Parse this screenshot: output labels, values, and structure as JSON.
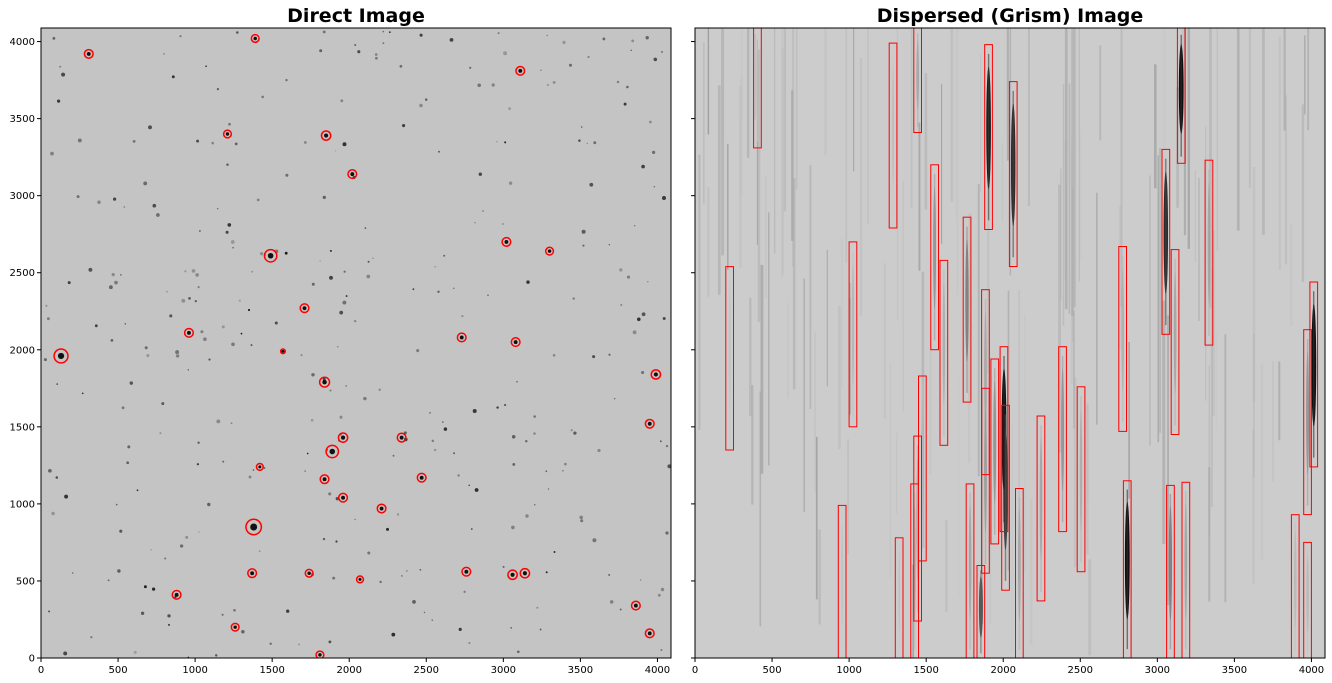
{
  "chart_data": [
    {
      "type": "scatter",
      "title": "Direct Image",
      "xlabel": "",
      "ylabel": "",
      "xlim": [
        0,
        4088
      ],
      "ylim": [
        0,
        4088
      ],
      "xticks": [
        "0",
        "500",
        "1000",
        "1500",
        "2000",
        "2500",
        "3000",
        "3500",
        "4000"
      ],
      "yticks": [
        "0",
        "500",
        "1000",
        "1500",
        "2000",
        "2500",
        "3000",
        "3500",
        "4000"
      ],
      "marker_color": "#ff0000",
      "background": "#c4c4c4",
      "colormap": "gray_r",
      "markers": [
        {
          "x": 130,
          "y": 1960,
          "r": 45
        },
        {
          "x": 310,
          "y": 3920,
          "r": 28
        },
        {
          "x": 1390,
          "y": 4020,
          "r": 25
        },
        {
          "x": 3110,
          "y": 3810,
          "r": 28
        },
        {
          "x": 1210,
          "y": 3400,
          "r": 25
        },
        {
          "x": 1850,
          "y": 3390,
          "r": 30
        },
        {
          "x": 2020,
          "y": 3140,
          "r": 28
        },
        {
          "x": 1490,
          "y": 2610,
          "r": 40
        },
        {
          "x": 3020,
          "y": 2700,
          "r": 28
        },
        {
          "x": 3300,
          "y": 2640,
          "r": 25
        },
        {
          "x": 1710,
          "y": 2270,
          "r": 28
        },
        {
          "x": 960,
          "y": 2110,
          "r": 28
        },
        {
          "x": 1570,
          "y": 1990,
          "r": 15
        },
        {
          "x": 2730,
          "y": 2080,
          "r": 28
        },
        {
          "x": 3080,
          "y": 2050,
          "r": 28
        },
        {
          "x": 1840,
          "y": 1790,
          "r": 32
        },
        {
          "x": 3990,
          "y": 1840,
          "r": 30
        },
        {
          "x": 3950,
          "y": 1520,
          "r": 28
        },
        {
          "x": 1960,
          "y": 1430,
          "r": 30
        },
        {
          "x": 2340,
          "y": 1430,
          "r": 28
        },
        {
          "x": 1890,
          "y": 1340,
          "r": 40
        },
        {
          "x": 1420,
          "y": 1240,
          "r": 22
        },
        {
          "x": 2470,
          "y": 1170,
          "r": 28
        },
        {
          "x": 1840,
          "y": 1160,
          "r": 28
        },
        {
          "x": 1960,
          "y": 1040,
          "r": 28
        },
        {
          "x": 2210,
          "y": 970,
          "r": 28
        },
        {
          "x": 1380,
          "y": 850,
          "r": 50
        },
        {
          "x": 1370,
          "y": 550,
          "r": 28
        },
        {
          "x": 1740,
          "y": 550,
          "r": 25
        },
        {
          "x": 2070,
          "y": 510,
          "r": 22
        },
        {
          "x": 2760,
          "y": 560,
          "r": 28
        },
        {
          "x": 3060,
          "y": 540,
          "r": 30
        },
        {
          "x": 3140,
          "y": 550,
          "r": 30
        },
        {
          "x": 880,
          "y": 410,
          "r": 28
        },
        {
          "x": 3860,
          "y": 340,
          "r": 28
        },
        {
          "x": 1260,
          "y": 200,
          "r": 25
        },
        {
          "x": 3950,
          "y": 160,
          "r": 28
        },
        {
          "x": 1810,
          "y": 20,
          "r": 25
        }
      ]
    },
    {
      "type": "scatter",
      "title": "Dispersed (Grism) Image",
      "xlabel": "",
      "ylabel": "",
      "xlim": [
        0,
        4088
      ],
      "ylim": [
        0,
        4088
      ],
      "xticks": [
        "0",
        "500",
        "1000",
        "1500",
        "2000",
        "2500",
        "3000",
        "3500",
        "4000"
      ],
      "yticks": [],
      "box_color": "#ff0000",
      "background": "#cccccc",
      "colormap": "gray_r",
      "boxes": [
        {
          "x0": 200,
          "x1": 250,
          "y0": 1350,
          "y1": 2540,
          "trace": 0.1
        },
        {
          "x0": 380,
          "x1": 430,
          "y0": 3310,
          "y1": 4088,
          "trace": 0.15
        },
        {
          "x0": 930,
          "x1": 980,
          "y0": 0,
          "y1": 990,
          "trace": 0.1
        },
        {
          "x0": 1000,
          "x1": 1050,
          "y0": 1500,
          "y1": 2700,
          "trace": 0.2
        },
        {
          "x0": 1260,
          "x1": 1310,
          "y0": 2790,
          "y1": 3990,
          "trace": 0.15
        },
        {
          "x0": 1300,
          "x1": 1350,
          "y0": 0,
          "y1": 780,
          "trace": 0.1
        },
        {
          "x0": 1400,
          "x1": 1450,
          "y0": 0,
          "y1": 1130,
          "trace": 0.25
        },
        {
          "x0": 1420,
          "x1": 1470,
          "y0": 240,
          "y1": 1440,
          "trace": 0.3
        },
        {
          "x0": 1420,
          "x1": 1470,
          "y0": 3410,
          "y1": 4088,
          "trace": 0.3
        },
        {
          "x0": 1450,
          "x1": 1500,
          "y0": 630,
          "y1": 1830,
          "trace": 0.2
        },
        {
          "x0": 1530,
          "x1": 1580,
          "y0": 2000,
          "y1": 3200,
          "trace": 0.4
        },
        {
          "x0": 1590,
          "x1": 1640,
          "y0": 1380,
          "y1": 2580,
          "trace": 0.25
        },
        {
          "x0": 1740,
          "x1": 1790,
          "y0": 1660,
          "y1": 2860,
          "trace": 0.5
        },
        {
          "x0": 1760,
          "x1": 1810,
          "y0": 0,
          "y1": 1130,
          "trace": 0.3
        },
        {
          "x0": 1830,
          "x1": 1880,
          "y0": 0,
          "y1": 600,
          "trace": 0.7
        },
        {
          "x0": 1860,
          "x1": 1910,
          "y0": 1190,
          "y1": 2390,
          "trace": 0.3
        },
        {
          "x0": 1860,
          "x1": 1910,
          "y0": 550,
          "y1": 1750,
          "trace": 0.35
        },
        {
          "x0": 1880,
          "x1": 1930,
          "y0": 2780,
          "y1": 3980,
          "trace": 0.9
        },
        {
          "x0": 1920,
          "x1": 1970,
          "y0": 740,
          "y1": 1940,
          "trace": 0.4
        },
        {
          "x0": 1980,
          "x1": 2030,
          "y0": 820,
          "y1": 2020,
          "trace": 0.95
        },
        {
          "x0": 1990,
          "x1": 2040,
          "y0": 440,
          "y1": 1640,
          "trace": 0.8
        },
        {
          "x0": 2040,
          "x1": 2090,
          "y0": 2540,
          "y1": 3740,
          "trace": 0.85
        },
        {
          "x0": 2080,
          "x1": 2130,
          "y0": 0,
          "y1": 1100,
          "trace": 0.3
        },
        {
          "x0": 2220,
          "x1": 2270,
          "y0": 370,
          "y1": 1570,
          "trace": 0.3
        },
        {
          "x0": 2360,
          "x1": 2410,
          "y0": 820,
          "y1": 2020,
          "trace": 0.4
        },
        {
          "x0": 2480,
          "x1": 2530,
          "y0": 560,
          "y1": 1760,
          "trace": 0.25
        },
        {
          "x0": 2750,
          "x1": 2800,
          "y0": 1470,
          "y1": 2670,
          "trace": 0.25
        },
        {
          "x0": 2780,
          "x1": 2830,
          "y0": 0,
          "y1": 1150,
          "trace": 0.95
        },
        {
          "x0": 3030,
          "x1": 3080,
          "y0": 2100,
          "y1": 3300,
          "trace": 0.85
        },
        {
          "x0": 3060,
          "x1": 3110,
          "y0": 0,
          "y1": 1120,
          "trace": 0.5
        },
        {
          "x0": 3090,
          "x1": 3140,
          "y0": 1450,
          "y1": 2650,
          "trace": 0.3
        },
        {
          "x0": 3130,
          "x1": 3180,
          "y0": 3210,
          "y1": 4088,
          "trace": 0.95
        },
        {
          "x0": 3160,
          "x1": 3210,
          "y0": 0,
          "y1": 1140,
          "trace": 0.3
        },
        {
          "x0": 3310,
          "x1": 3360,
          "y0": 2030,
          "y1": 3230,
          "trace": 0.3
        },
        {
          "x0": 3870,
          "x1": 3920,
          "y0": 0,
          "y1": 930,
          "trace": 0.2
        },
        {
          "x0": 3950,
          "x1": 4000,
          "y0": 930,
          "y1": 2130,
          "trace": 0.4
        },
        {
          "x0": 3950,
          "x1": 4000,
          "y0": 0,
          "y1": 750,
          "trace": 0.2
        },
        {
          "x0": 3990,
          "x1": 4040,
          "y0": 1240,
          "y1": 2440,
          "trace": 0.95
        }
      ]
    }
  ]
}
